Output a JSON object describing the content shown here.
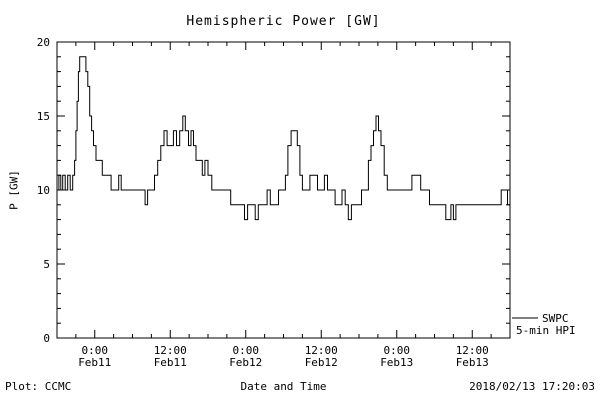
{
  "title": "Hemispheric Power [GW]",
  "footer": {
    "left": "Plot: CCMC",
    "right": "2018/02/13 17:20:03"
  },
  "legend": {
    "name": "SWPC",
    "detail": "5-min HPI"
  },
  "chart_data": {
    "type": "line",
    "title": "Hemispheric Power [GW]",
    "xlabel": "Date and Time",
    "ylabel": "P [GW]",
    "ylim": [
      0,
      20
    ],
    "yticks": [
      0,
      5,
      10,
      15,
      20
    ],
    "y_major": 5,
    "y_minor": 1,
    "xlim": [
      0,
      72
    ],
    "x_minor": 3,
    "x_units": "hours since 2018-02-10 18:00",
    "xticks": [
      {
        "t": 6,
        "time": "0:00",
        "date": "Feb11"
      },
      {
        "t": 18,
        "time": "12:00",
        "date": "Feb11"
      },
      {
        "t": 30,
        "time": "0:00",
        "date": "Feb12"
      },
      {
        "t": 42,
        "time": "12:00",
        "date": "Feb12"
      },
      {
        "t": 54,
        "time": "0:00",
        "date": "Feb13"
      },
      {
        "t": 66,
        "time": "12:00",
        "date": "Feb13"
      }
    ],
    "grid": false,
    "legend_position": "right-outside",
    "series": [
      {
        "name": "SWPC 5-min HPI",
        "step": true,
        "color": "#000000",
        "points": [
          [
            0,
            10
          ],
          [
            0.3,
            11
          ],
          [
            0.6,
            10
          ],
          [
            0.9,
            11
          ],
          [
            1.3,
            10
          ],
          [
            1.7,
            11
          ],
          [
            2.1,
            10
          ],
          [
            2.5,
            11
          ],
          [
            2.8,
            12
          ],
          [
            3.0,
            14
          ],
          [
            3.2,
            16
          ],
          [
            3.4,
            18
          ],
          [
            3.6,
            19
          ],
          [
            4.3,
            19
          ],
          [
            4.6,
            18
          ],
          [
            4.9,
            17
          ],
          [
            5.2,
            15
          ],
          [
            5.5,
            14
          ],
          [
            5.8,
            13
          ],
          [
            6.2,
            12
          ],
          [
            6.8,
            12
          ],
          [
            7.2,
            11
          ],
          [
            8.0,
            11
          ],
          [
            8.6,
            10
          ],
          [
            9.4,
            10
          ],
          [
            9.8,
            11
          ],
          [
            10.2,
            10
          ],
          [
            11.0,
            10
          ],
          [
            12.0,
            10
          ],
          [
            13.0,
            10
          ],
          [
            13.6,
            10
          ],
          [
            14.0,
            9
          ],
          [
            14.4,
            10
          ],
          [
            15.0,
            10
          ],
          [
            15.5,
            11
          ],
          [
            16.0,
            12
          ],
          [
            16.5,
            13
          ],
          [
            17.0,
            14
          ],
          [
            17.5,
            13
          ],
          [
            18.0,
            13
          ],
          [
            18.5,
            14
          ],
          [
            19.0,
            13
          ],
          [
            19.5,
            14
          ],
          [
            20.0,
            15
          ],
          [
            20.4,
            14
          ],
          [
            20.9,
            13
          ],
          [
            21.3,
            14
          ],
          [
            21.7,
            13
          ],
          [
            22.1,
            12
          ],
          [
            22.6,
            12
          ],
          [
            23.1,
            11
          ],
          [
            23.5,
            12
          ],
          [
            24.0,
            11
          ],
          [
            24.6,
            10
          ],
          [
            25.4,
            10
          ],
          [
            26.2,
            10
          ],
          [
            27.0,
            10
          ],
          [
            27.6,
            9
          ],
          [
            28.4,
            9
          ],
          [
            29.2,
            9
          ],
          [
            29.8,
            8
          ],
          [
            30.3,
            9
          ],
          [
            31.0,
            9
          ],
          [
            31.5,
            8
          ],
          [
            32.0,
            9
          ],
          [
            32.8,
            9
          ],
          [
            33.4,
            10
          ],
          [
            33.9,
            9
          ],
          [
            34.6,
            9
          ],
          [
            35.2,
            10
          ],
          [
            35.8,
            10
          ],
          [
            36.3,
            11
          ],
          [
            36.7,
            13
          ],
          [
            37.2,
            14
          ],
          [
            37.8,
            14
          ],
          [
            38.2,
            13
          ],
          [
            38.6,
            11
          ],
          [
            39.0,
            10
          ],
          [
            39.6,
            10
          ],
          [
            40.2,
            11
          ],
          [
            40.8,
            11
          ],
          [
            41.4,
            10
          ],
          [
            42.0,
            10
          ],
          [
            42.5,
            11
          ],
          [
            43.0,
            10
          ],
          [
            43.6,
            10
          ],
          [
            44.2,
            9
          ],
          [
            44.8,
            9
          ],
          [
            45.3,
            10
          ],
          [
            45.8,
            9
          ],
          [
            46.3,
            8
          ],
          [
            46.8,
            9
          ],
          [
            47.6,
            9
          ],
          [
            48.4,
            10
          ],
          [
            49.0,
            10
          ],
          [
            49.5,
            12
          ],
          [
            49.9,
            13
          ],
          [
            50.3,
            14
          ],
          [
            50.7,
            15
          ],
          [
            51.1,
            14
          ],
          [
            51.5,
            13
          ],
          [
            52.0,
            11
          ],
          [
            52.5,
            10
          ],
          [
            53.2,
            10
          ],
          [
            54.0,
            10
          ],
          [
            55.0,
            10
          ],
          [
            55.8,
            10
          ],
          [
            56.4,
            11
          ],
          [
            57.2,
            11
          ],
          [
            57.8,
            10
          ],
          [
            58.6,
            10
          ],
          [
            59.2,
            9
          ],
          [
            60.0,
            9
          ],
          [
            61.0,
            9
          ],
          [
            61.8,
            8
          ],
          [
            62.2,
            8
          ],
          [
            62.6,
            9
          ],
          [
            63.0,
            8
          ],
          [
            63.4,
            9
          ],
          [
            64.2,
            9
          ],
          [
            65.0,
            9
          ],
          [
            66.0,
            9
          ],
          [
            67.0,
            9
          ],
          [
            68.0,
            9
          ],
          [
            69.0,
            9
          ],
          [
            70.0,
            9
          ],
          [
            70.6,
            10
          ],
          [
            71.2,
            10
          ],
          [
            71.6,
            9
          ],
          [
            72,
            9
          ]
        ]
      }
    ]
  }
}
